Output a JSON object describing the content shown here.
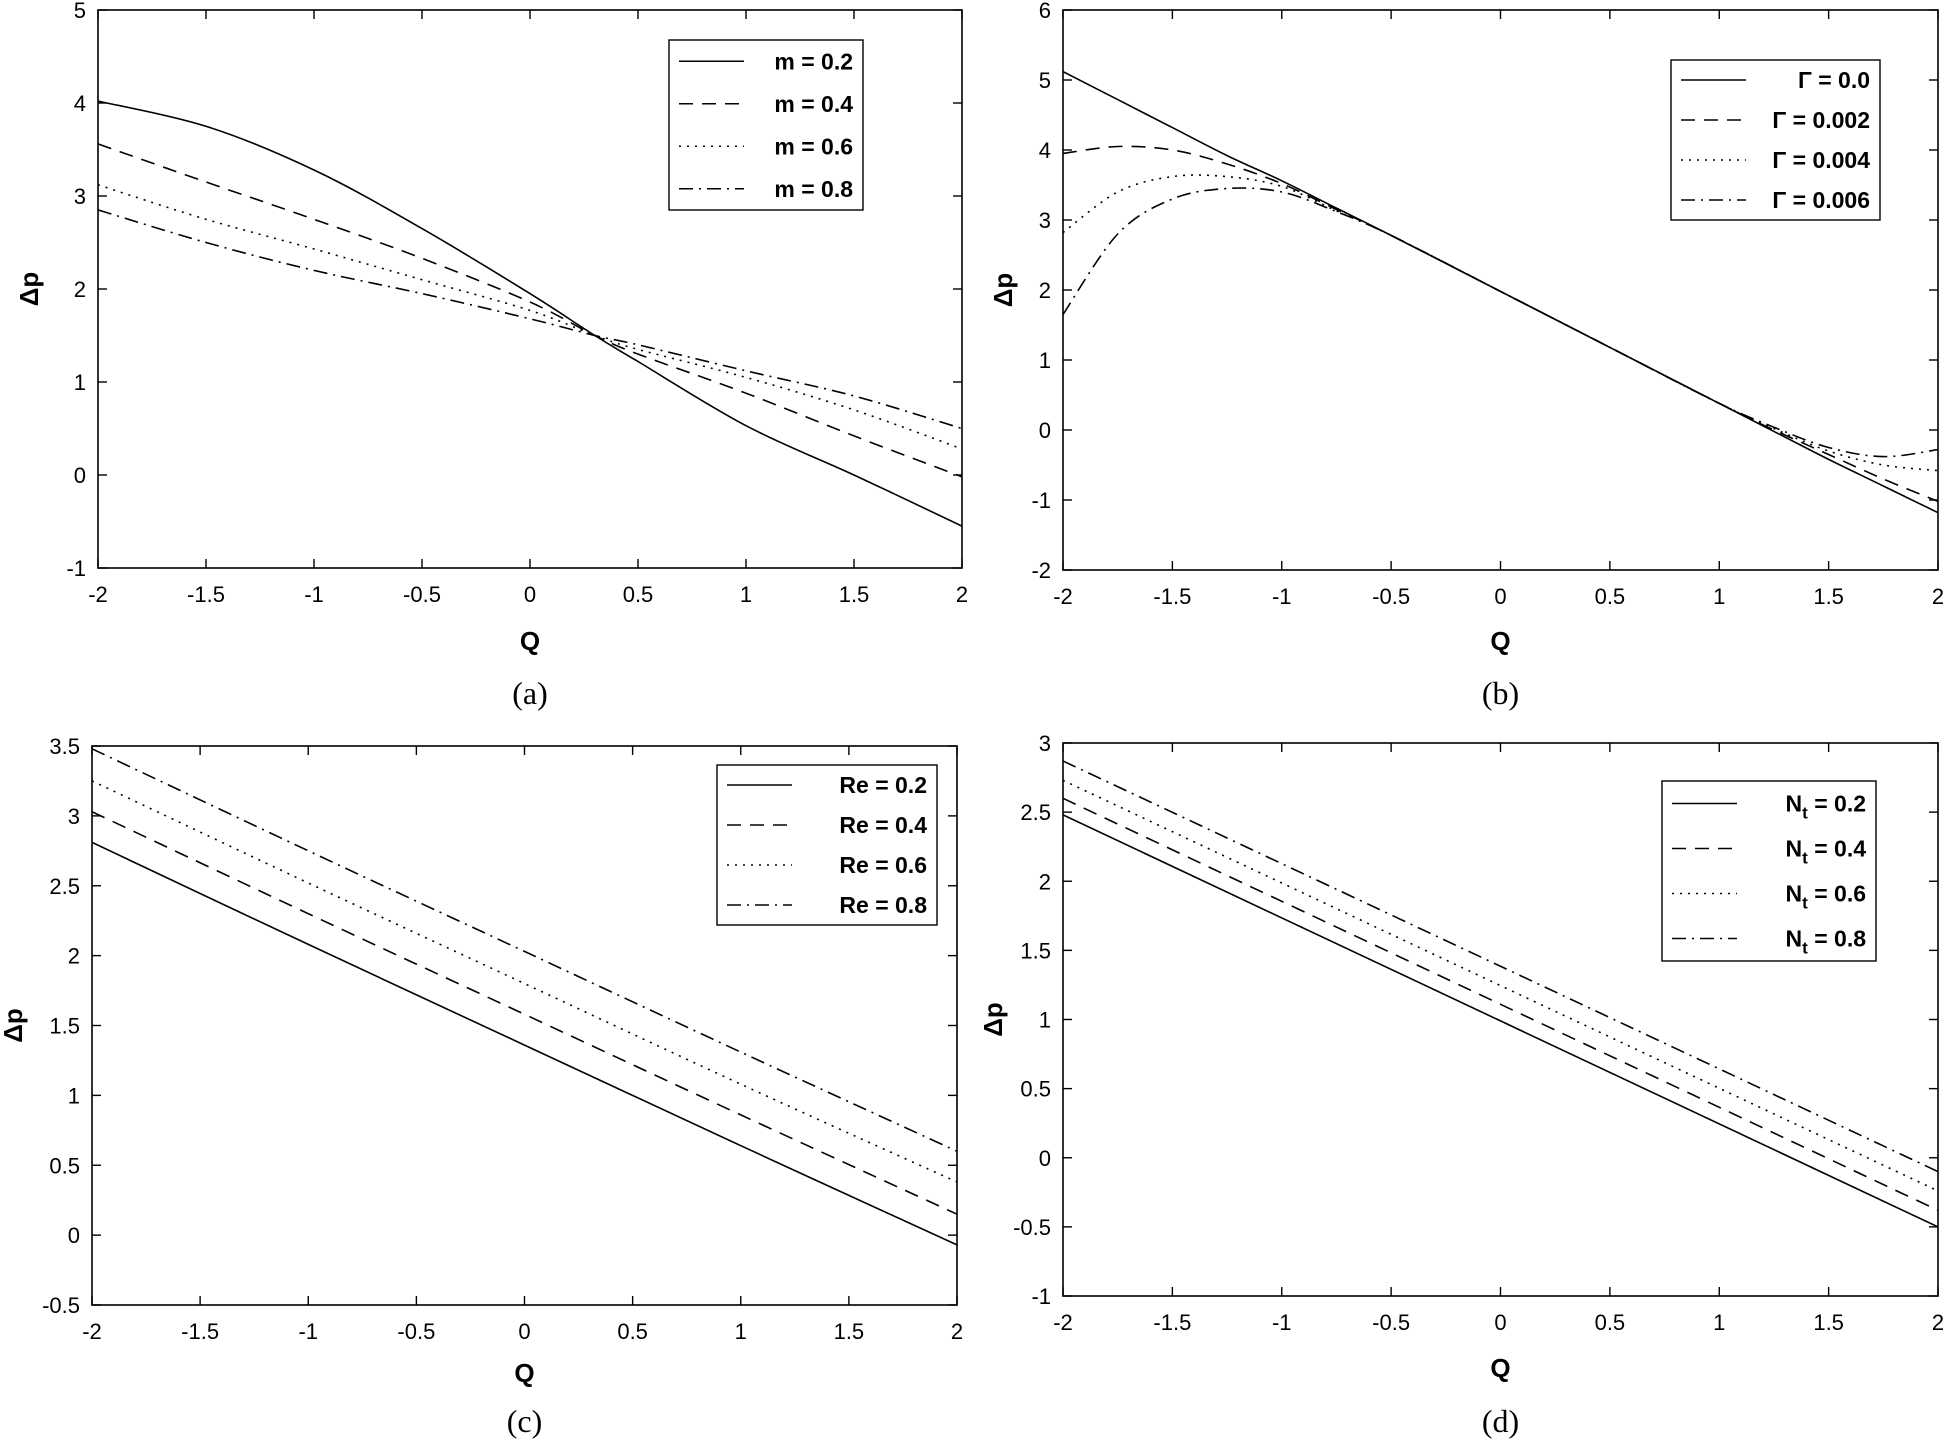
{
  "chart_data": [
    {
      "type": "line",
      "caption": "(a)",
      "xlabel": "Q",
      "ylabel": "Δp",
      "xlim": [
        -2,
        2
      ],
      "ylim": [
        -1,
        5
      ],
      "xticks": [
        -2,
        -1.5,
        -1,
        -0.5,
        0,
        0.5,
        1,
        1.5,
        2
      ],
      "xtick_labels": [
        "-2",
        "-1.5",
        "-1",
        "-0.5",
        "0",
        "0.5",
        "1",
        "1.5",
        "2"
      ],
      "yticks": [
        -1,
        0,
        1,
        2,
        3,
        4,
        5
      ],
      "ytick_labels": [
        "-1",
        "0",
        "1",
        "2",
        "3",
        "4",
        "5"
      ],
      "legend_position": "top-right",
      "x": [
        -2,
        -1.5,
        -1,
        -0.5,
        0,
        0.3,
        0.5,
        1,
        1.5,
        2
      ],
      "series": [
        {
          "name": "m = 0.2",
          "dash": "solid",
          "values": [
            4.02,
            3.75,
            3.28,
            2.65,
            1.95,
            1.5,
            1.22,
            0.53,
            0.0,
            -0.55
          ]
        },
        {
          "name": "m = 0.4",
          "dash": "dashed",
          "values": [
            3.56,
            3.15,
            2.75,
            2.33,
            1.86,
            1.5,
            1.3,
            0.88,
            0.42,
            -0.02
          ]
        },
        {
          "name": "m = 0.6",
          "dash": "dotted",
          "values": [
            3.12,
            2.75,
            2.43,
            2.1,
            1.77,
            1.5,
            1.35,
            1.05,
            0.7,
            0.28
          ]
        },
        {
          "name": "m = 0.8",
          "dash": "dashdot",
          "values": [
            2.85,
            2.5,
            2.2,
            1.95,
            1.68,
            1.5,
            1.4,
            1.12,
            0.85,
            0.5
          ]
        }
      ]
    },
    {
      "type": "line",
      "caption": "(b)",
      "xlabel": "Q",
      "ylabel": "Δp",
      "xlim": [
        -2,
        2
      ],
      "ylim": [
        -2,
        6
      ],
      "xticks": [
        -2,
        -1.5,
        -1,
        -0.5,
        0,
        0.5,
        1,
        1.5,
        2
      ],
      "xtick_labels": [
        "-2",
        "-1.5",
        "-1",
        "-0.5",
        "0",
        "0.5",
        "1",
        "1.5",
        "2"
      ],
      "yticks": [
        -2,
        -1,
        0,
        1,
        2,
        3,
        4,
        5,
        6
      ],
      "ytick_labels": [
        "-2",
        "-1",
        "0",
        "1",
        "2",
        "3",
        "4",
        "5",
        "6"
      ],
      "legend_position": "top-right",
      "x": [
        -2,
        -1.75,
        -1.5,
        -1.25,
        -1,
        -0.75,
        -0.5,
        0,
        0.5,
        1,
        1.25,
        1.5,
        1.75,
        2
      ],
      "series": [
        {
          "name": "Γ = 0.0",
          "dash": "solid",
          "values": [
            5.12,
            4.72,
            4.32,
            3.92,
            3.56,
            3.17,
            2.78,
            1.98,
            1.18,
            0.38,
            -0.02,
            -0.42,
            -0.8,
            -1.18
          ]
        },
        {
          "name": "Γ = 0.002",
          "dash": "dashed",
          "values": [
            3.95,
            4.05,
            4.0,
            3.8,
            3.52,
            3.15,
            2.78,
            1.98,
            1.18,
            0.38,
            0.0,
            -0.35,
            -0.7,
            -1.02
          ]
        },
        {
          "name": "Γ = 0.004",
          "dash": "dotted",
          "values": [
            2.82,
            3.4,
            3.62,
            3.62,
            3.48,
            3.13,
            2.78,
            1.98,
            1.18,
            0.38,
            0.02,
            -0.3,
            -0.5,
            -0.58
          ]
        },
        {
          "name": "Γ = 0.006",
          "dash": "dashdot",
          "values": [
            1.65,
            2.8,
            3.3,
            3.45,
            3.4,
            3.12,
            2.78,
            1.98,
            1.18,
            0.38,
            0.04,
            -0.25,
            -0.38,
            -0.28
          ]
        }
      ]
    },
    {
      "type": "line",
      "caption": "(c)",
      "xlabel": "Q",
      "ylabel": "Δp",
      "xlim": [
        -2,
        2
      ],
      "ylim": [
        -0.5,
        3.5
      ],
      "xticks": [
        -2,
        -1.5,
        -1,
        -0.5,
        0,
        0.5,
        1,
        1.5,
        2
      ],
      "xtick_labels": [
        "-2",
        "-1.5",
        "-1",
        "-0.5",
        "0",
        "0.5",
        "1",
        "1.5",
        "2"
      ],
      "yticks": [
        -0.5,
        0,
        0.5,
        1,
        1.5,
        2,
        2.5,
        3,
        3.5
      ],
      "ytick_labels": [
        "-0.5",
        "0",
        "0.5",
        "1",
        "1.5",
        "2",
        "2.5",
        "3",
        "3.5"
      ],
      "legend_position": "top-right",
      "x": [
        -2,
        -1,
        0,
        1,
        2
      ],
      "series": [
        {
          "name": "Re = 0.2",
          "dash": "solid",
          "values": [
            2.81,
            2.08,
            1.36,
            0.64,
            -0.07
          ]
        },
        {
          "name": "Re = 0.4",
          "dash": "dashed",
          "values": [
            3.03,
            2.3,
            1.58,
            0.86,
            0.15
          ]
        },
        {
          "name": "Re = 0.6",
          "dash": "dotted",
          "values": [
            3.25,
            2.52,
            1.8,
            1.08,
            0.38
          ]
        },
        {
          "name": "Re = 0.8",
          "dash": "dashdot",
          "values": [
            3.48,
            2.75,
            2.03,
            1.31,
            0.6
          ]
        }
      ]
    },
    {
      "type": "line",
      "caption": "(d)",
      "xlabel": "Q",
      "ylabel": "Δp",
      "xlim": [
        -2,
        2
      ],
      "ylim": [
        -1,
        3
      ],
      "xticks": [
        -2,
        -1.5,
        -1,
        -0.5,
        0,
        0.5,
        1,
        1.5,
        2
      ],
      "xtick_labels": [
        "-2",
        "-1.5",
        "-1",
        "-0.5",
        "0",
        "0.5",
        "1",
        "1.5",
        "2"
      ],
      "yticks": [
        -1,
        -0.5,
        0,
        0.5,
        1,
        1.5,
        2,
        2.5,
        3
      ],
      "ytick_labels": [
        "-1",
        "-0.5",
        "0",
        "0.5",
        "1",
        "1.5",
        "2",
        "2.5",
        "3"
      ],
      "legend_position": "top-right",
      "x": [
        -2,
        2
      ],
      "series": [
        {
          "name": "N_t = 0.2",
          "label_main": "N",
          "label_sub": "t",
          "label_tail": " = 0.2",
          "dash": "solid",
          "values": [
            2.48,
            -0.5
          ]
        },
        {
          "name": "N_t = 0.4",
          "label_main": "N",
          "label_sub": "t",
          "label_tail": " = 0.4",
          "dash": "dashed",
          "values": [
            2.6,
            -0.38
          ]
        },
        {
          "name": "N_t = 0.6",
          "label_main": "N",
          "label_sub": "t",
          "label_tail": " = 0.6",
          "dash": "dotted",
          "values": [
            2.73,
            -0.24
          ]
        },
        {
          "name": "N_t = 0.8",
          "label_main": "N",
          "label_sub": "t",
          "label_tail": " = 0.8",
          "dash": "dashdot",
          "values": [
            2.87,
            -0.1
          ]
        }
      ]
    }
  ]
}
